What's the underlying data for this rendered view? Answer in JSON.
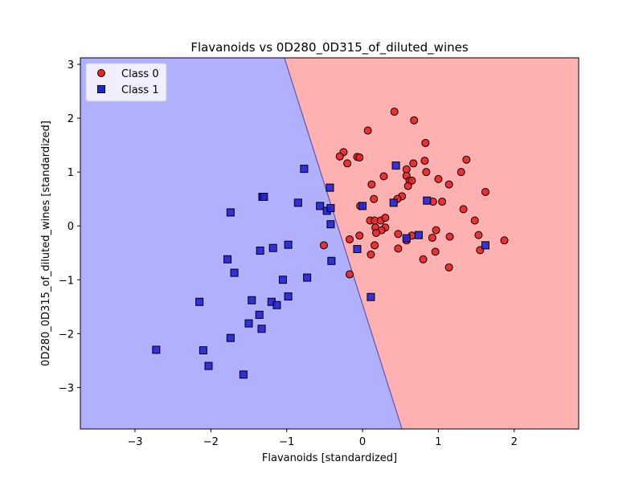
{
  "chart_data": {
    "type": "scatter",
    "title": "Flavanoids vs 0D280_0D315_of_diluted_wines",
    "xlabel": "Flavanoids [standardized]",
    "ylabel": "0D280_0D315_of_diluted_wines [standardized]",
    "xlim": [
      -3.72,
      2.85
    ],
    "ylim": [
      -3.77,
      3.12
    ],
    "xticks": [
      -3,
      -2,
      -1,
      0,
      1,
      2
    ],
    "yticks": [
      -3,
      -2,
      -1,
      0,
      1,
      2,
      3
    ],
    "grid": false,
    "legend": "top-left",
    "decision_regions": {
      "class_0_color": "#ffb0b0",
      "class_1_color": "#b0b0ff",
      "boundary_color": "#5555cc",
      "boundary_line": [
        [
          -1.03,
          3.12
        ],
        [
          0.52,
          -3.77
        ]
      ]
    },
    "series": [
      {
        "name": "Class 0",
        "marker": "circle",
        "color": "#ee2222",
        "points": [
          [
            0.42,
            2.12
          ],
          [
            0.68,
            1.96
          ],
          [
            0.07,
            1.77
          ],
          [
            0.83,
            1.54
          ],
          [
            -0.25,
            1.37
          ],
          [
            -0.3,
            1.29
          ],
          [
            -0.07,
            1.28
          ],
          [
            -0.04,
            1.27
          ],
          [
            -0.2,
            1.16
          ],
          [
            0.82,
            1.21
          ],
          [
            0.67,
            1.16
          ],
          [
            1.37,
            1.23
          ],
          [
            0.58,
            1.05
          ],
          [
            0.84,
            1.0
          ],
          [
            0.28,
            0.92
          ],
          [
            0.58,
            0.93
          ],
          [
            0.62,
            0.84
          ],
          [
            0.65,
            0.84
          ],
          [
            1.0,
            0.87
          ],
          [
            1.3,
            1.0
          ],
          [
            0.12,
            0.77
          ],
          [
            1.14,
            0.77
          ],
          [
            0.6,
            0.74
          ],
          [
            1.62,
            0.63
          ],
          [
            0.52,
            0.55
          ],
          [
            0.15,
            0.5
          ],
          [
            0.46,
            0.5
          ],
          [
            0.93,
            0.45
          ],
          [
            1.05,
            0.45
          ],
          [
            -0.03,
            0.37
          ],
          [
            1.33,
            0.31
          ],
          [
            0.1,
            0.1
          ],
          [
            0.16,
            0.1
          ],
          [
            0.24,
            0.1
          ],
          [
            0.3,
            0.15
          ],
          [
            1.48,
            0.1
          ],
          [
            0.17,
            -0.03
          ],
          [
            0.3,
            -0.03
          ],
          [
            0.25,
            -0.08
          ],
          [
            0.97,
            -0.08
          ],
          [
            -0.04,
            -0.18
          ],
          [
            0.18,
            -0.13
          ],
          [
            0.47,
            -0.15
          ],
          [
            0.65,
            -0.18
          ],
          [
            0.92,
            -0.22
          ],
          [
            1.53,
            -0.17
          ],
          [
            1.15,
            -0.2
          ],
          [
            -0.17,
            -0.25
          ],
          [
            1.87,
            -0.27
          ],
          [
            0.58,
            -0.27
          ],
          [
            -0.51,
            -0.36
          ],
          [
            0.16,
            -0.36
          ],
          [
            0.47,
            -0.42
          ],
          [
            0.96,
            -0.48
          ],
          [
            1.55,
            -0.45
          ],
          [
            0.11,
            -0.53
          ],
          [
            0.8,
            -0.62
          ],
          [
            1.14,
            -0.77
          ],
          [
            -0.17,
            -0.9
          ]
        ]
      },
      {
        "name": "Class 1",
        "marker": "square",
        "color": "#2222dd",
        "points": [
          [
            0.44,
            1.12
          ],
          [
            -0.77,
            1.06
          ],
          [
            -0.43,
            0.71
          ],
          [
            -1.32,
            0.54
          ],
          [
            -1.3,
            0.54
          ],
          [
            0.85,
            0.47
          ],
          [
            -0.85,
            0.43
          ],
          [
            0.41,
            0.43
          ],
          [
            0.0,
            0.37
          ],
          [
            -0.56,
            0.37
          ],
          [
            -0.47,
            0.28
          ],
          [
            -0.42,
            0.33
          ],
          [
            -1.74,
            0.25
          ],
          [
            -0.42,
            0.03
          ],
          [
            0.74,
            -0.17
          ],
          [
            0.58,
            -0.23
          ],
          [
            1.62,
            -0.36
          ],
          [
            -0.98,
            -0.35
          ],
          [
            -1.18,
            -0.41
          ],
          [
            -0.07,
            -0.43
          ],
          [
            -1.35,
            -0.46
          ],
          [
            -1.78,
            -0.62
          ],
          [
            -0.41,
            -0.65
          ],
          [
            -1.69,
            -0.87
          ],
          [
            -0.73,
            -0.96
          ],
          [
            -1.05,
            -1.0
          ],
          [
            0.11,
            -1.32
          ],
          [
            -0.98,
            -1.31
          ],
          [
            -2.15,
            -1.41
          ],
          [
            -1.46,
            -1.38
          ],
          [
            -1.2,
            -1.41
          ],
          [
            -1.13,
            -1.47
          ],
          [
            -1.36,
            -1.65
          ],
          [
            -1.5,
            -1.81
          ],
          [
            -1.33,
            -1.91
          ],
          [
            -1.74,
            -2.08
          ],
          [
            -2.72,
            -2.3
          ],
          [
            -2.1,
            -2.31
          ],
          [
            -2.03,
            -2.6
          ],
          [
            -1.57,
            -2.76
          ]
        ]
      }
    ]
  }
}
